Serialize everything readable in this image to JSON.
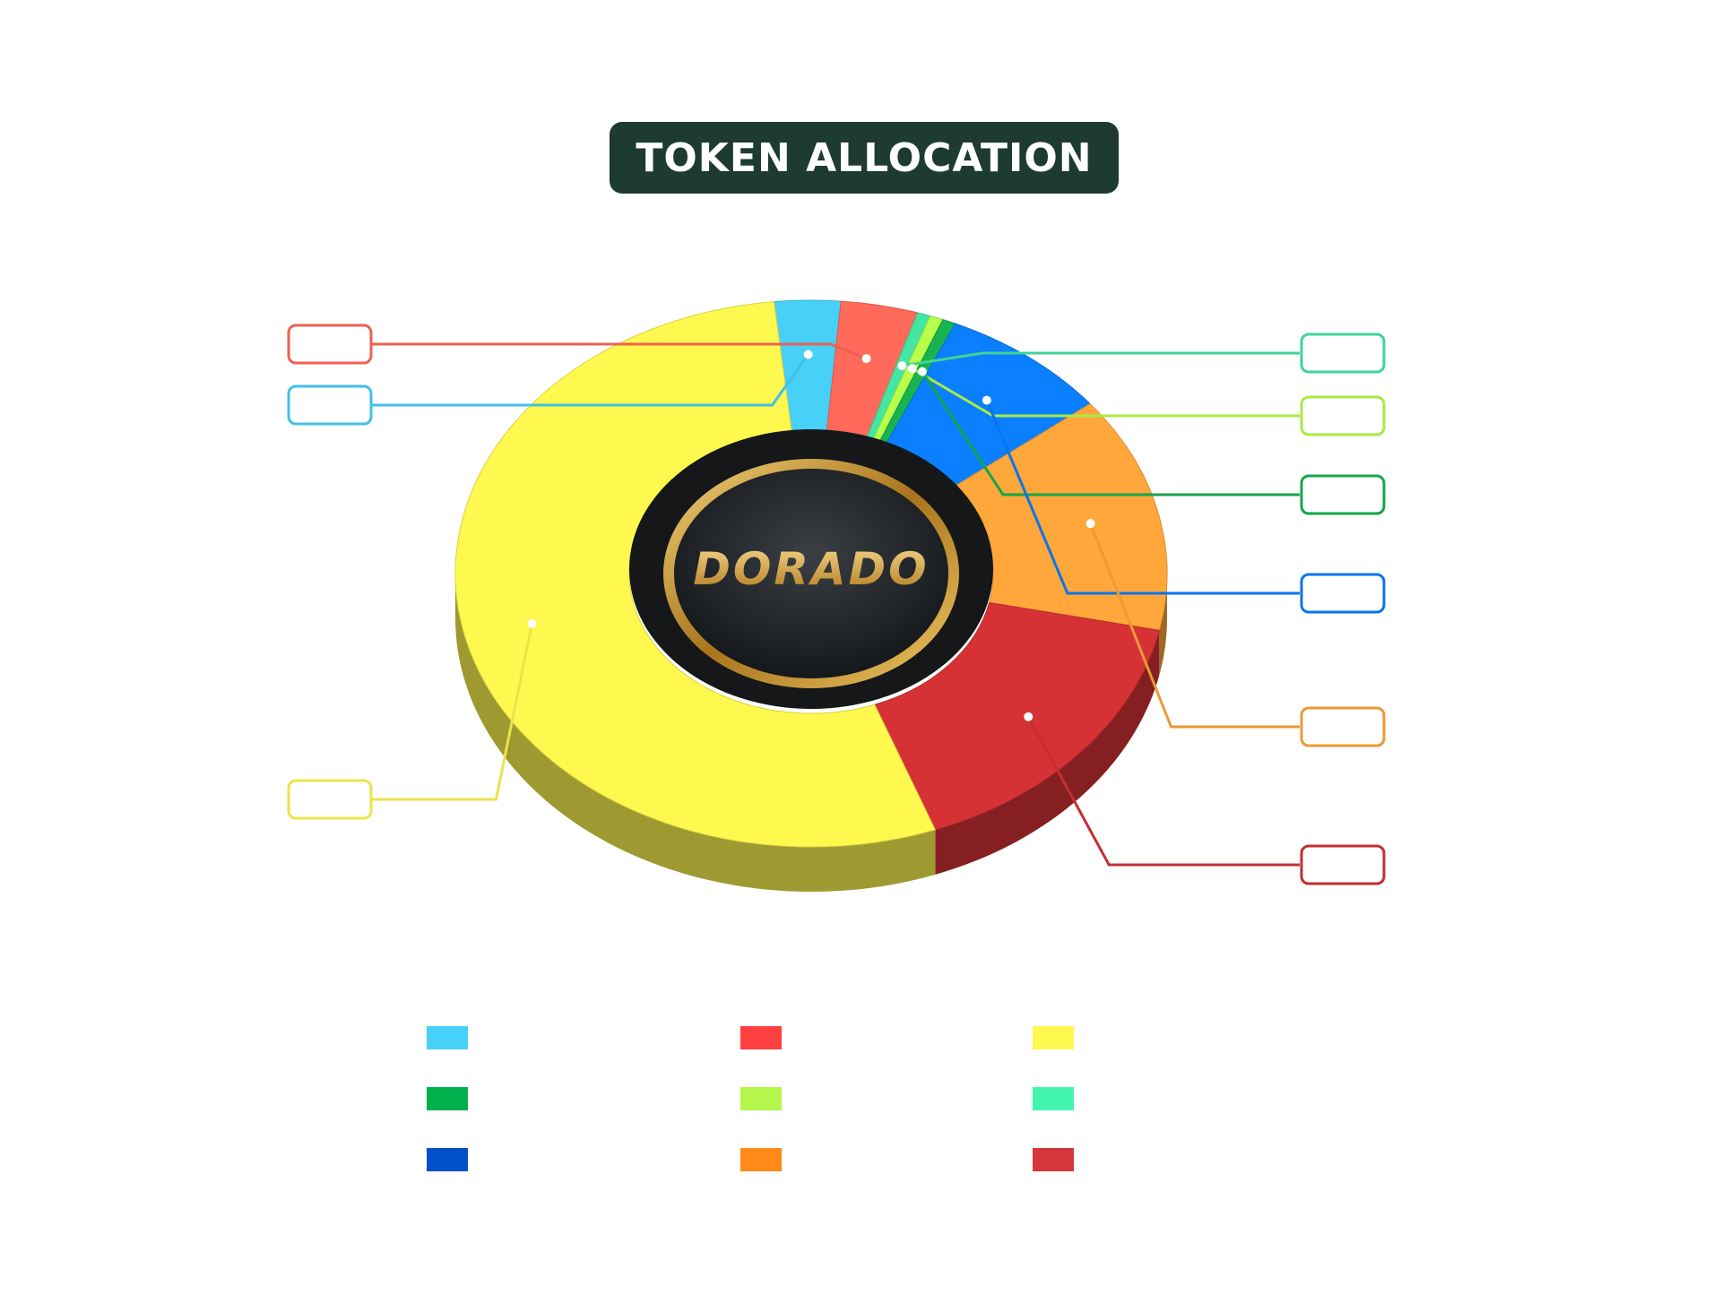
{
  "title": "TOKEN ALLOCATION",
  "logo_text": "DORADO",
  "chart_data": {
    "type": "pie",
    "style": "3d-donut",
    "title": "TOKEN ALLOCATION",
    "slices": [
      {
        "color": "#47d1f8",
        "value": 3.0,
        "callout": "left-upper"
      },
      {
        "color": "#ff6a5a",
        "value": 3.5,
        "callout": "left-top"
      },
      {
        "color": "#44e6a3",
        "value": 0.6,
        "callout": "right-top"
      },
      {
        "color": "#b7ff4a",
        "value": 0.6,
        "callout": "right-second"
      },
      {
        "color": "#17b350",
        "value": 0.6,
        "callout": "right-third"
      },
      {
        "color": "#0a7fff",
        "value": 7.7,
        "callout": "right-fourth"
      },
      {
        "color": "#ffa73a",
        "value": 14.0,
        "callout": "right-fifth"
      },
      {
        "color": "#d63236",
        "value": 16.0,
        "callout": "right-bottom"
      },
      {
        "color": "#fff84f",
        "value": 54.0,
        "callout": "left-bottom"
      }
    ],
    "legend": [
      {
        "color": "#47d1f8"
      },
      {
        "color": "#02b04d"
      },
      {
        "color": "#0050c8"
      },
      {
        "color": "#ff4040"
      },
      {
        "color": "#b4f64c"
      },
      {
        "color": "#ff8a17"
      },
      {
        "color": "#fff84f"
      },
      {
        "color": "#44f5b0"
      },
      {
        "color": "#d4363c"
      }
    ],
    "legend_placement": "bottom",
    "values_printed": false
  }
}
